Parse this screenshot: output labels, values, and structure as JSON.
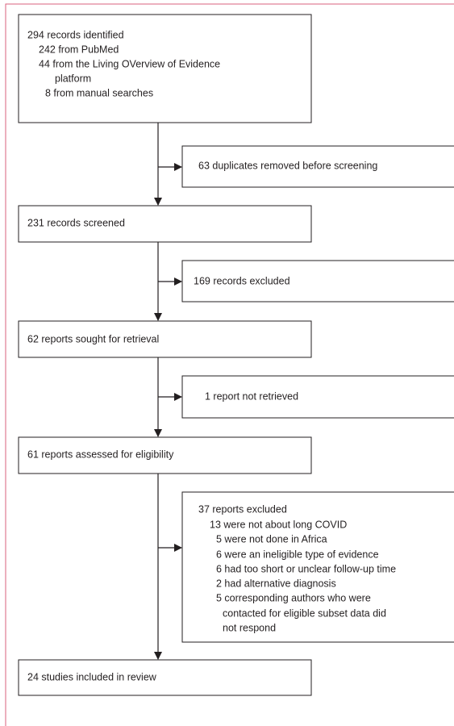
{
  "nodes": [
    {
      "lines": [
        "294 records identified",
        "242 from PubMed",
        "44 from the Living OVerview of Evidence",
        "platform",
        "8 from manual searches"
      ]
    },
    {
      "lines": [
        "63 duplicates removed before screening"
      ]
    },
    {
      "lines": [
        "231 records screened"
      ]
    },
    {
      "lines": [
        "169 records excluded"
      ]
    },
    {
      "lines": [
        "62 reports sought for retrieval"
      ]
    },
    {
      "lines": [
        "1 report not retrieved"
      ]
    },
    {
      "lines": [
        "61 reports assessed for eligibility"
      ]
    },
    {
      "lines": [
        "37 reports excluded",
        "13 were not about long COVID",
        "5 were not done in Africa",
        "6 were an ineligible type of evidence",
        "6 had too short or unclear follow-up time",
        "2 had alternative diagnosis",
        "5 corresponding authors who were",
        "contacted for eligible subset data did",
        "not respond"
      ]
    },
    {
      "lines": [
        "24 studies included in review"
      ]
    }
  ]
}
